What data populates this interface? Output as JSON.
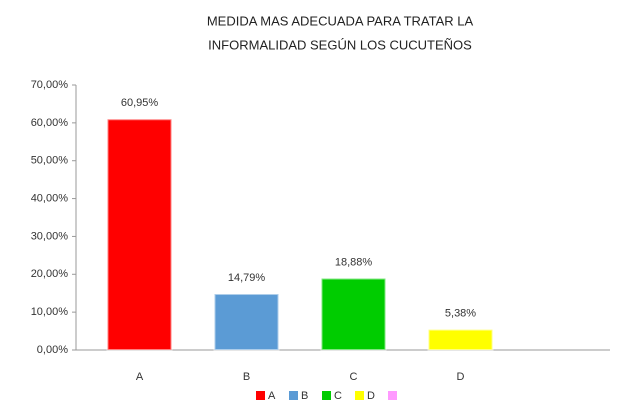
{
  "chart_data": {
    "type": "bar",
    "title": [
      "MEDIDA MAS ADECUADA PARA TRATAR LA",
      "INFORMALIDAD SEGÚN LOS CUCUTEÑOS"
    ],
    "categories": [
      "A",
      "B",
      "C",
      "D"
    ],
    "values": [
      60.95,
      14.79,
      18.88,
      5.38
    ],
    "value_labels": [
      "60,95%",
      "14,79%",
      "18,88%",
      "5,38%"
    ],
    "colors": [
      "#ff0000",
      "#5b9bd5",
      "#00cc00",
      "#ffff00"
    ],
    "ylim": [
      0,
      70
    ],
    "yticks": [
      {
        "value": 0,
        "label": "0,00%"
      },
      {
        "value": 10,
        "label": "10,00%"
      },
      {
        "value": 20,
        "label": "20,00%"
      },
      {
        "value": 30,
        "label": "30,00%"
      },
      {
        "value": 40,
        "label": "40,00%"
      },
      {
        "value": 50,
        "label": "50,00%"
      },
      {
        "value": 60,
        "label": "60,00%"
      },
      {
        "value": 70,
        "label": "70,00%"
      }
    ],
    "legend": [
      {
        "name": "A",
        "color": "#ff0000"
      },
      {
        "name": "B",
        "color": "#5b9bd5"
      },
      {
        "name": "C",
        "color": "#00cc00"
      },
      {
        "name": "D",
        "color": "#ffff00"
      },
      {
        "name": null,
        "color": "#ff99ff"
      }
    ]
  }
}
